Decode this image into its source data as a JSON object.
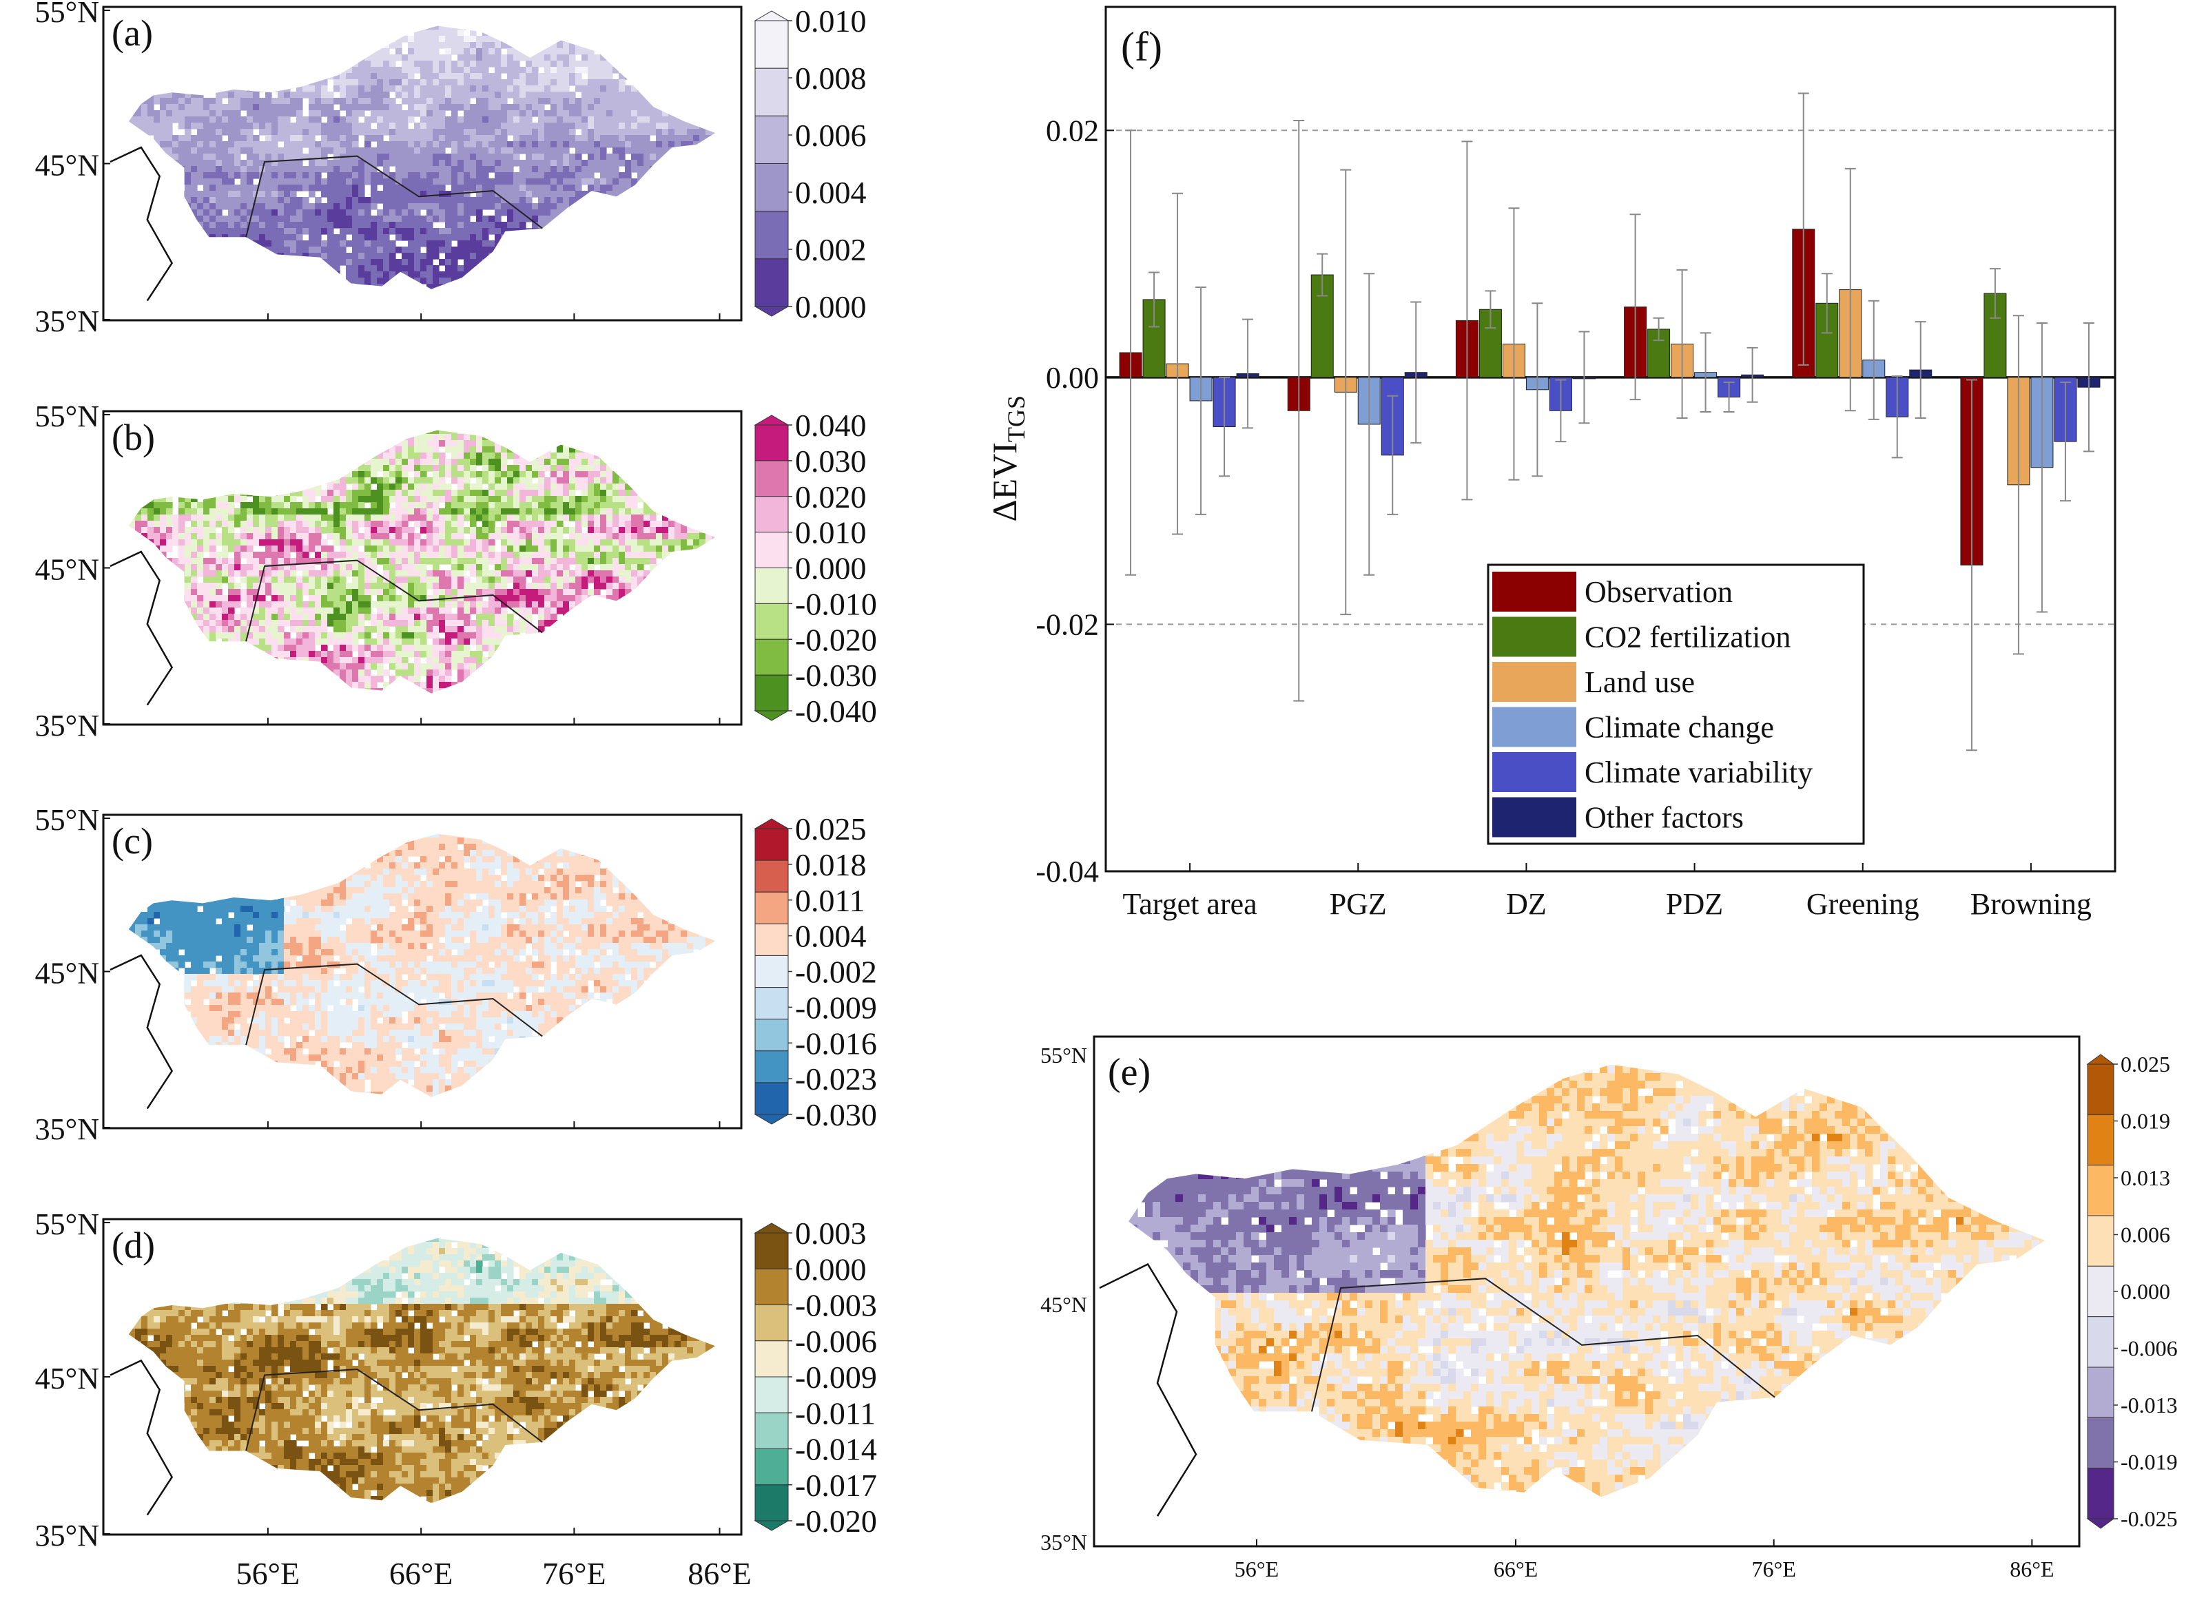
{
  "maps": [
    {
      "label": "(a)",
      "colors": [
        "#f4f2f9",
        "#dcd9ec",
        "#bdb8db",
        "#9e96c8",
        "#7b6db5",
        "#5a3c9c"
      ],
      "ticks": [
        "0.010",
        "0.008",
        "0.006",
        "0.004",
        "0.002",
        "0.000"
      ],
      "pattern": "a"
    },
    {
      "label": "(b)",
      "colors": [
        "#c51b7d",
        "#de77ae",
        "#f1b6da",
        "#fde0ef",
        "#e6f5d0",
        "#b8e186",
        "#7fbc41",
        "#4d9221"
      ],
      "ticks": [
        "0.040",
        "0.030",
        "0.020",
        "0.010",
        "0.000",
        "-0.010",
        "-0.020",
        "-0.030",
        "-0.040"
      ],
      "pattern": "b"
    },
    {
      "label": "(c)",
      "colors": [
        "#b2182b",
        "#d6604d",
        "#f4a582",
        "#fddbc7",
        "#e4eef6",
        "#c7dff0",
        "#92c5de",
        "#4393c3",
        "#2166ac"
      ],
      "ticks": [
        "0.025",
        "0.018",
        "0.011",
        "0.004",
        "-0.002",
        "-0.009",
        "-0.016",
        "-0.023",
        "-0.030"
      ],
      "pattern": "c"
    },
    {
      "label": "(d)",
      "colors": [
        "#7a5212",
        "#b3832f",
        "#dbc07c",
        "#f5ecd0",
        "#d6ede7",
        "#99d4c6",
        "#4fae96",
        "#1b7b68"
      ],
      "ticks": [
        "0.003",
        "0.000",
        "-0.003",
        "-0.006",
        "-0.009",
        "-0.011",
        "-0.014",
        "-0.017",
        "-0.020"
      ],
      "pattern": "d"
    },
    {
      "label": "(e)",
      "colors": [
        "#b35806",
        "#e08214",
        "#fdb863",
        "#fee0b6",
        "#ebe9f2",
        "#d8daeb",
        "#b2abd2",
        "#8073ac",
        "#542788"
      ],
      "ticks": [
        "0.025",
        "0.019",
        "0.013",
        "0.006",
        "0.000",
        "-0.006",
        "-0.013",
        "-0.019",
        "-0.025"
      ],
      "pattern": "e"
    }
  ],
  "small_map_lat_labels": [
    "55°N",
    "45°N",
    "35°N"
  ],
  "small_map_lon_labels": [
    "56°E",
    "66°E",
    "76°E",
    "86°E"
  ],
  "chart_data": {
    "type": "bar",
    "panel_label": "(f)",
    "ylabel_main": "ΔEVI",
    "ylabel_sub": "TGS",
    "ylim": [
      -0.04,
      0.03
    ],
    "yticks": [
      "0.02",
      "0.00",
      "-0.02",
      "-0.04"
    ],
    "grid": "dashed at ±0.02",
    "legend_position": "center",
    "categories": [
      "Target area",
      "PGZ",
      "DZ",
      "PDZ",
      "Greening",
      "Browning"
    ],
    "series": [
      {
        "name": "Observation",
        "color": "#8b0000",
        "values": [
          0.002,
          -0.0027,
          0.0046,
          0.0057,
          0.012,
          -0.0152
        ],
        "err": [
          0.018,
          0.0235,
          0.0145,
          0.0075,
          0.011,
          0.015
        ]
      },
      {
        "name": "CO2 fertilization",
        "color": "#4b7a12",
        "values": [
          0.0063,
          0.0083,
          0.0055,
          0.0039,
          0.006,
          0.0068
        ],
        "err": [
          0.0022,
          0.0017,
          0.0015,
          0.0009,
          0.0024,
          0.002
        ]
      },
      {
        "name": "Land use",
        "color": "#e8a65a",
        "values": [
          0.0011,
          -0.0012,
          0.0027,
          0.0027,
          0.0071,
          -0.0087
        ],
        "err": [
          0.0138,
          0.018,
          0.011,
          0.006,
          0.0098,
          0.0137
        ]
      },
      {
        "name": "Climate change",
        "color": "#7f9fd4",
        "values": [
          -0.0019,
          -0.0038,
          -0.001,
          0.0004,
          0.0014,
          -0.0073
        ],
        "err": [
          0.0092,
          0.0122,
          0.007,
          0.0032,
          0.0048,
          0.0117
        ]
      },
      {
        "name": "Climate variability",
        "color": "#4a4fc6",
        "values": [
          -0.004,
          -0.0063,
          -0.0027,
          -0.0016,
          -0.0032,
          -0.0052
        ],
        "err": [
          0.004,
          0.0048,
          0.0025,
          0.0012,
          0.0033,
          0.0048
        ]
      },
      {
        "name": "Other factors",
        "color": "#1f2470",
        "values": [
          0.0003,
          0.0004,
          0.0,
          0.0002,
          0.0006,
          -0.0008
        ],
        "err": [
          0.0044,
          0.0057,
          0.0037,
          0.0022,
          0.0039,
          0.0052
        ]
      }
    ]
  },
  "map_e": {
    "lat_labels": [
      "55°N",
      "45°N",
      "35°N"
    ],
    "lon_labels": [
      "56°E",
      "66°E",
      "76°E",
      "86°E"
    ]
  }
}
